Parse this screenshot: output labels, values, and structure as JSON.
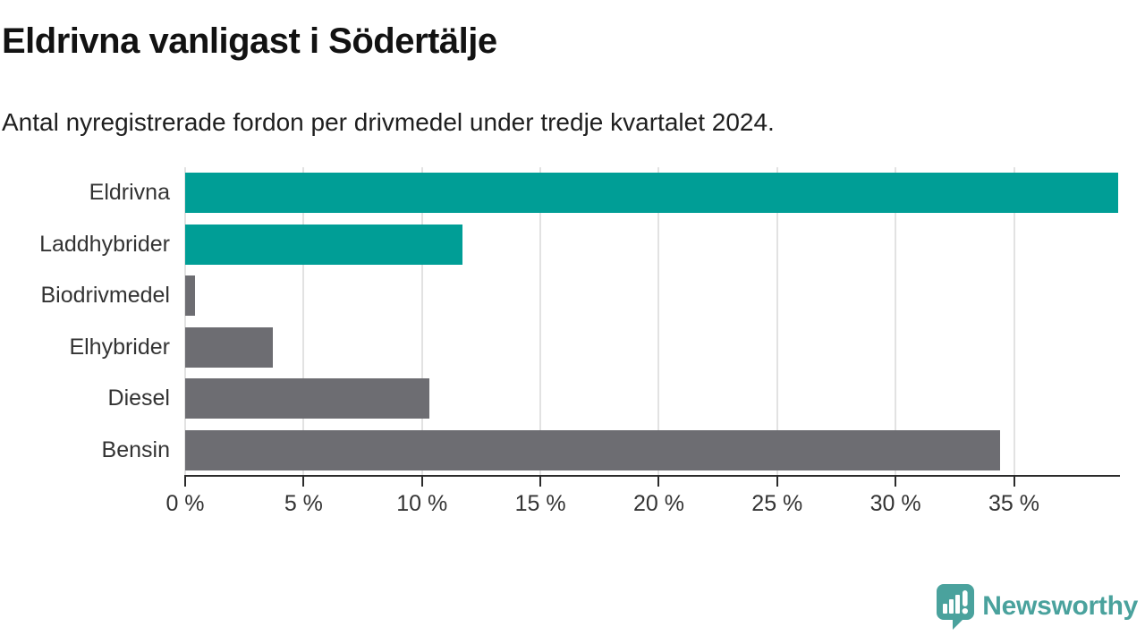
{
  "header": {
    "title": "Eldrivna vanligast i Södertälje",
    "subtitle": "Antal nyregistrerade fordon per drivmedel under tredje kvartalet 2024."
  },
  "chart_data": {
    "type": "bar",
    "orientation": "horizontal",
    "title": "Eldrivna vanligast i Södertälje",
    "subtitle": "Antal nyregistrerade fordon per drivmedel under tredje kvartalet 2024.",
    "categories": [
      "Eldrivna",
      "Laddhybrider",
      "Biodrivmedel",
      "Elhybrider",
      "Diesel",
      "Bensin"
    ],
    "values": [
      39.4,
      11.7,
      0.4,
      3.7,
      10.3,
      34.4
    ],
    "unit": "%",
    "bar_colors": [
      "#009e96",
      "#009e96",
      "#6d6d72",
      "#6d6d72",
      "#6d6d72",
      "#6d6d72"
    ],
    "highlight_color": "#009e96",
    "default_color": "#6d6d72",
    "xlim": [
      0,
      39.4
    ],
    "x_tick_values": [
      0,
      5,
      10,
      15,
      20,
      25,
      30,
      35
    ],
    "x_tick_labels": [
      "0 %",
      "5 %",
      "10 %",
      "15 %",
      "20 %",
      "25 %",
      "30 %",
      "35 %"
    ],
    "grid": "vertical-gridlines",
    "gridline_color": "#e2e2e2",
    "axis_color": "#2b2b2b",
    "legend": "none"
  },
  "footer": {
    "brand": "Newsworthy",
    "brand_color": "#4aa29d",
    "logo_icon": "bar-chart-speech-bubble-icon"
  }
}
